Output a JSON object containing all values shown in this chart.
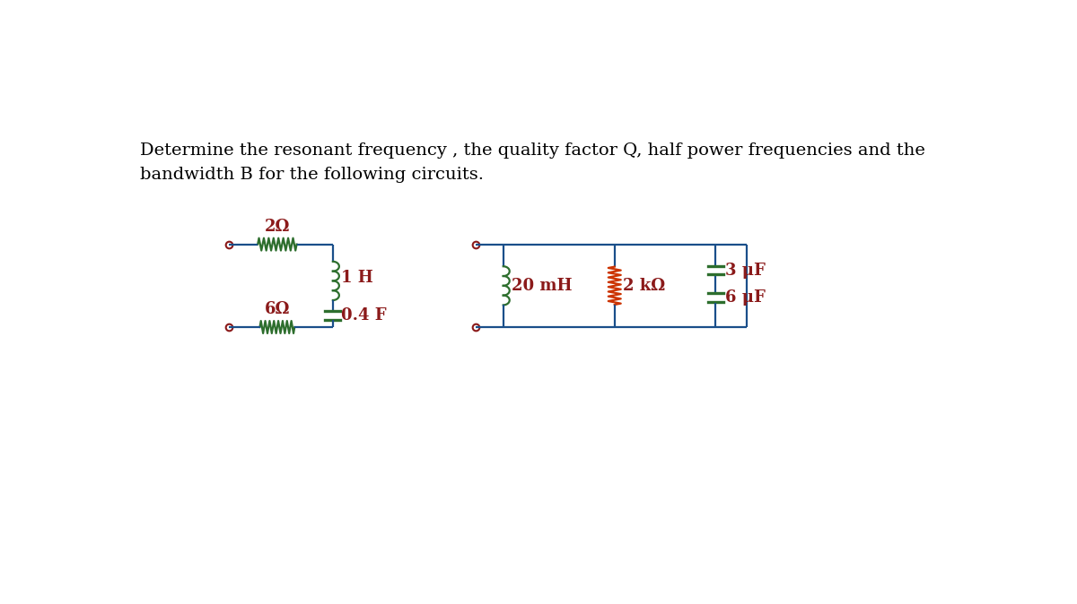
{
  "title_line1": "Determine the resonant frequency , the quality factor Q, half power frequencies and the",
  "title_line2": "bandwidth B for the following circuits.",
  "bg_color": "#ffffff",
  "wire_color": "#1a4f8a",
  "resistor_color": "#cc3300",
  "inductor_color": "#2d6e2d",
  "capacitor_color": "#2d6e2d",
  "text_color": "#000000",
  "label_color": "#8b1a1a",
  "c1_label_2ohm": "2Ω",
  "c1_label_1H": "1 H",
  "c1_label_6ohm": "6Ω",
  "c1_label_04F": "0.4 F",
  "c2_label_20mH": "20 mH",
  "c2_label_2kohm": "2 kΩ",
  "c2_label_3uF": "3 μF",
  "c2_label_6uF": "6 μF"
}
